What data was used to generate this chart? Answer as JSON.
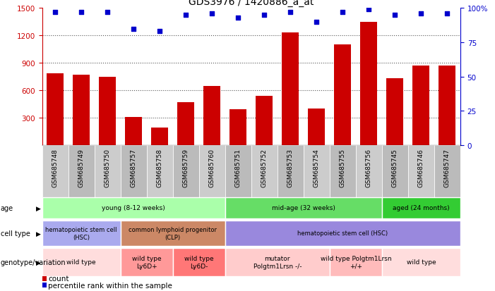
{
  "title": "GDS3976 / 1420886_a_at",
  "samples": [
    "GSM685748",
    "GSM685749",
    "GSM685750",
    "GSM685757",
    "GSM685758",
    "GSM685759",
    "GSM685760",
    "GSM685751",
    "GSM685752",
    "GSM685753",
    "GSM685754",
    "GSM685755",
    "GSM685756",
    "GSM685745",
    "GSM685746",
    "GSM685747"
  ],
  "counts": [
    790,
    770,
    750,
    310,
    195,
    470,
    650,
    390,
    540,
    1230,
    400,
    1100,
    1350,
    730,
    870,
    870
  ],
  "percentiles": [
    97,
    97,
    97,
    85,
    83,
    95,
    96,
    93,
    95,
    97,
    90,
    97,
    99,
    95,
    96,
    96
  ],
  "ylim_left": [
    0,
    1500
  ],
  "ylim_right": [
    0,
    100
  ],
  "yticks_left": [
    300,
    600,
    900,
    1200,
    1500
  ],
  "yticks_right": [
    0,
    25,
    50,
    75,
    100
  ],
  "bar_color": "#cc0000",
  "dot_color": "#0000cc",
  "grid_color": "#555555",
  "age_row": {
    "groups": [
      {
        "label": "young (8-12 weeks)",
        "start": 0,
        "end": 7,
        "color": "#aaffaa"
      },
      {
        "label": "mid-age (32 weeks)",
        "start": 7,
        "end": 13,
        "color": "#66dd66"
      },
      {
        "label": "aged (24 months)",
        "start": 13,
        "end": 16,
        "color": "#33cc33"
      }
    ]
  },
  "cell_type_row": {
    "groups": [
      {
        "label": "hematopoietic stem cell\n(HSC)",
        "start": 0,
        "end": 3,
        "color": "#aaaaee"
      },
      {
        "label": "common lymphoid progenitor\n(CLP)",
        "start": 3,
        "end": 7,
        "color": "#cc8866"
      },
      {
        "label": "hematopoietic stem cell (HSC)",
        "start": 7,
        "end": 16,
        "color": "#9988dd"
      }
    ]
  },
  "genotype_row": {
    "groups": [
      {
        "label": "wild type",
        "start": 0,
        "end": 3,
        "color": "#ffdddd"
      },
      {
        "label": "wild type\nLy6D+",
        "start": 3,
        "end": 5,
        "color": "#ff9999"
      },
      {
        "label": "wild type\nLy6D-",
        "start": 5,
        "end": 7,
        "color": "#ff7777"
      },
      {
        "label": "mutator\nPolgtm1Lrsn -/-",
        "start": 7,
        "end": 11,
        "color": "#ffcccc"
      },
      {
        "label": "wild type Polgtm1Lrsn\n+/+",
        "start": 11,
        "end": 13,
        "color": "#ffbbbb"
      },
      {
        "label": "wild type",
        "start": 13,
        "end": 16,
        "color": "#ffdddd"
      }
    ]
  },
  "legend_count_color": "#cc0000",
  "legend_dot_color": "#0000cc",
  "xtick_bg_even": "#cccccc",
  "xtick_bg_odd": "#bbbbbb"
}
